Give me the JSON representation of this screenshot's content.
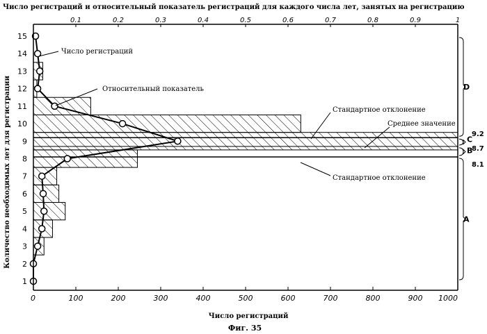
{
  "chart_data": {
    "type": "bar",
    "orientation": "horizontal",
    "title": "Число регистраций и относительный показатель регистраций для каждого числа лет, занятых на регистрацию",
    "xlabel": "Число регистраций",
    "ylabel": "Количество необходимых лет для регистрации",
    "caption": "Фиг. 35",
    "x_bottom": {
      "range": [
        0,
        1000
      ],
      "ticks": [
        0,
        100,
        200,
        300,
        400,
        500,
        600,
        700,
        800,
        900,
        1000
      ],
      "tick_labels": [
        "0",
        "100",
        "200",
        "300",
        "400",
        "500",
        "600",
        "700",
        "800",
        "900",
        "1000"
      ]
    },
    "x_top": {
      "range": [
        0,
        1
      ],
      "ticks": [
        0.1,
        0.2,
        0.3,
        0.4,
        0.5,
        0.6,
        0.7,
        0.8,
        0.9,
        1
      ],
      "tick_labels": [
        "0.1",
        "0.2",
        "0.3",
        "0.4",
        "0.5",
        "0.6",
        "0.7",
        "0.8",
        "0.9",
        "1"
      ]
    },
    "y": {
      "range": [
        1,
        15
      ],
      "ticks": [
        1,
        2,
        3,
        4,
        5,
        6,
        7,
        8,
        9,
        10,
        11,
        12,
        13,
        14,
        15
      ],
      "tick_labels": [
        "1",
        "2",
        "3",
        "4",
        "5",
        "6",
        "7",
        "8",
        "9",
        "10",
        "11",
        "12",
        "13",
        "14",
        "15"
      ]
    },
    "series": [
      {
        "name": "Число регистраций",
        "kind": "bar",
        "categories": [
          1,
          2,
          3,
          4,
          5,
          6,
          7,
          8,
          9,
          10,
          11,
          12,
          13,
          14,
          15
        ],
        "values": [
          0,
          0,
          25,
          45,
          75,
          60,
          55,
          245,
          1000,
          630,
          135,
          8,
          22,
          0,
          0
        ]
      },
      {
        "name": "Относительный показатель",
        "kind": "line",
        "x": [
          0,
          0,
          0.01,
          0.02,
          0.025,
          0.023,
          0.02,
          0.08,
          0.34,
          0.21,
          0.05,
          0.01,
          0.015,
          0.01,
          0.005
        ],
        "y": [
          1,
          2,
          3,
          4,
          5,
          6,
          7,
          8,
          9,
          10,
          11,
          12,
          13,
          14,
          15
        ]
      }
    ],
    "bands": [
      {
        "label": "Стандартное отклонение",
        "y_from": 8.1,
        "y_to": 9.2,
        "x_to": 1000
      },
      {
        "label": "Среднее значение",
        "y": 8.7
      }
    ],
    "markers": [
      {
        "label": "8.1",
        "y": 8.1
      },
      {
        "label": "8.7",
        "y": 8.7
      },
      {
        "label": "9.2",
        "y": 9.2
      }
    ],
    "regions": [
      {
        "label": "D",
        "y_from": 9.2,
        "y_to": 15
      },
      {
        "label": "C",
        "y_from": 8.7,
        "y_to": 9.2
      },
      {
        "label": "B",
        "y_from": 8.1,
        "y_to": 8.7
      },
      {
        "label": "A",
        "y_from": 1,
        "y_to": 8.1
      }
    ],
    "annotations": [
      {
        "text": "Число регистраций",
        "target": "bars"
      },
      {
        "text": "Относительный показатель",
        "target": "line"
      },
      {
        "text": "Стандартное отклонение",
        "target": "upper band edge"
      },
      {
        "text": "Среднее значение",
        "target": "mean line"
      },
      {
        "text": "Стандартное отклонение",
        "target": "lower band edge"
      }
    ]
  }
}
